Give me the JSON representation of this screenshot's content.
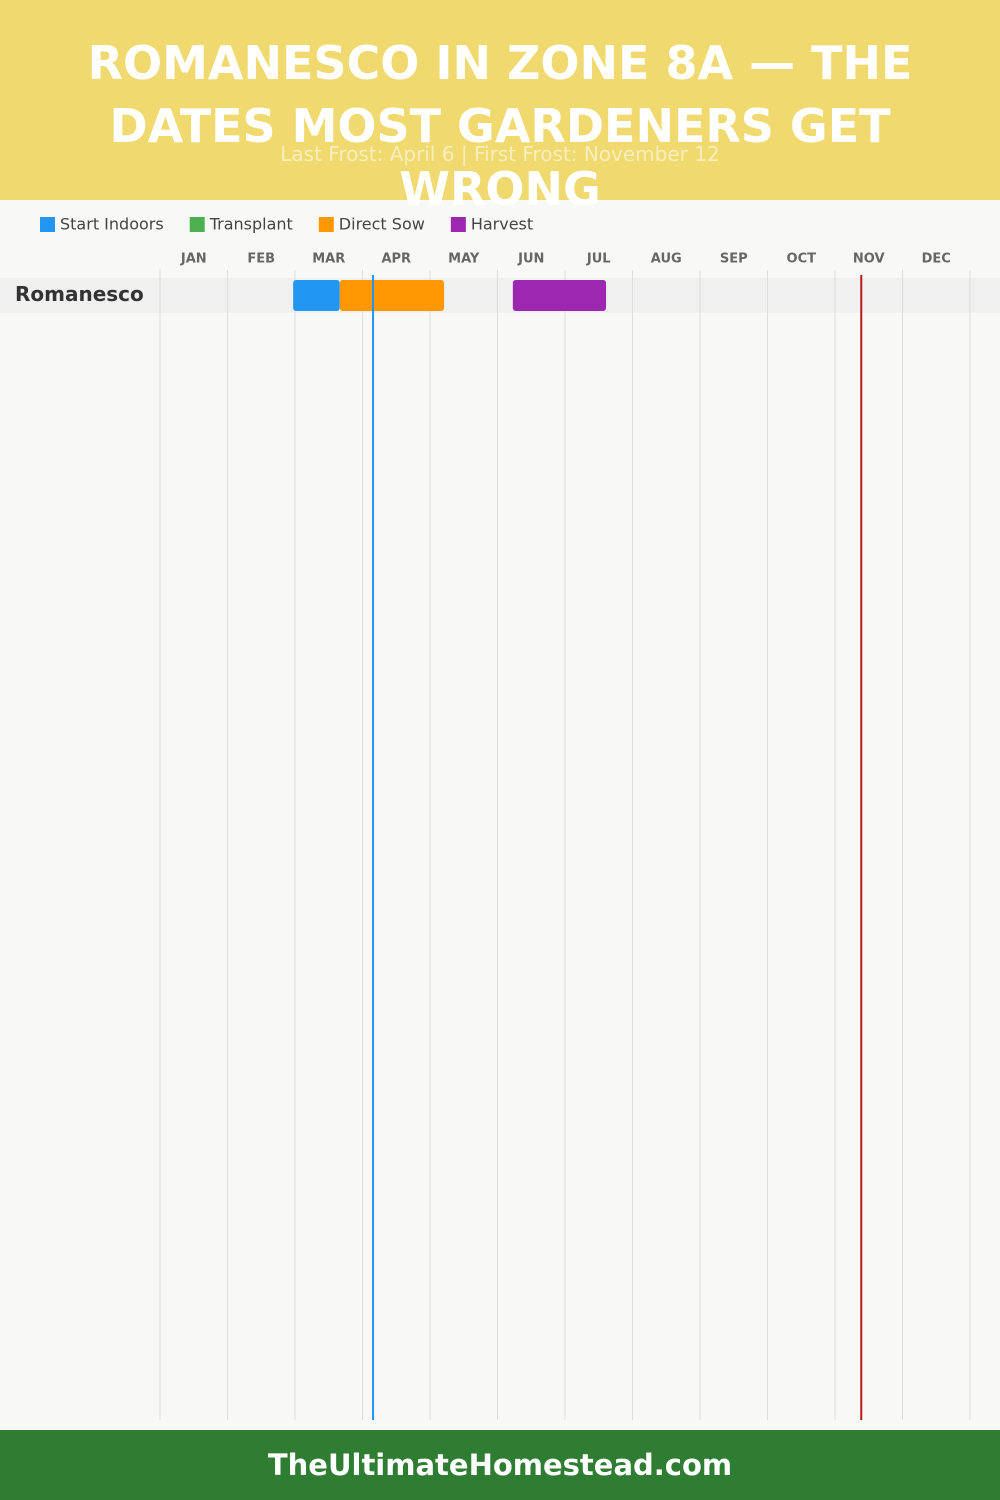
{
  "chart_data": {
    "type": "gantt",
    "title": "ROMANESCO IN ZONE 8A — THE DATES MOST GARDENERS GET WRONG",
    "subtitle": "Last Frost: April 6 | First Frost: November 12",
    "categories": [
      "JAN",
      "FEB",
      "MAR",
      "APR",
      "MAY",
      "JUN",
      "JUL",
      "AUG",
      "SEP",
      "OCT",
      "NOV",
      "DEC"
    ],
    "xlim": [
      0,
      365
    ],
    "rows": [
      "Romanesco"
    ],
    "series": [
      {
        "name": "Start Indoors",
        "color": "#2196f3",
        "start": [
          60
        ],
        "end": [
          81
        ]
      },
      {
        "name": "Transplant",
        "color": "#4caf50",
        "start": [
          null
        ],
        "end": [
          null
        ]
      },
      {
        "name": "Direct Sow",
        "color": "#ff9800",
        "start": [
          81
        ],
        "end": [
          128
        ]
      },
      {
        "name": "Harvest",
        "color": "#9c27b0",
        "start": [
          159
        ],
        "end": [
          201
        ]
      }
    ],
    "markers": [
      {
        "value": 96,
        "color": "#2196f3"
      },
      {
        "value": 316,
        "color": "#b71c1c"
      }
    ]
  },
  "footer": "TheUltimateHomestead.com"
}
